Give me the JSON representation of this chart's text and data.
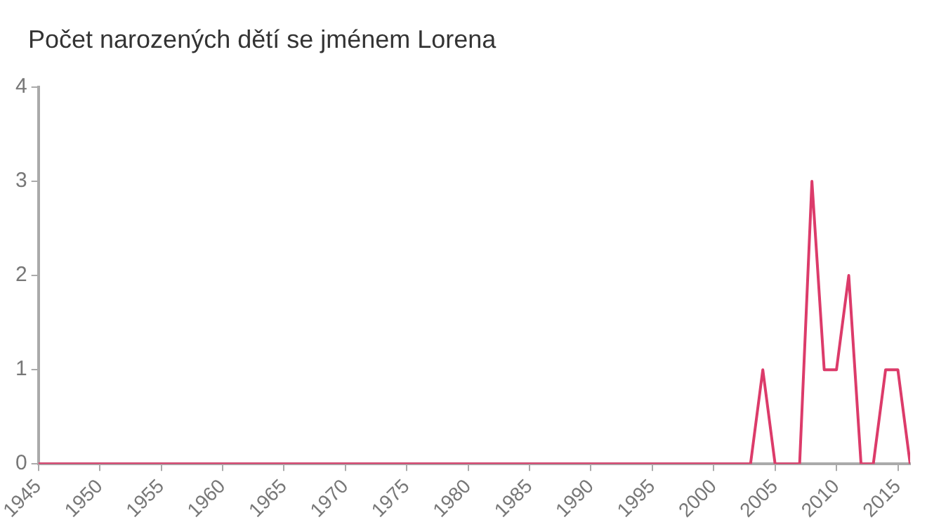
{
  "chart_data": {
    "type": "line",
    "title": "Počet narozených dětí se jménem Lorena",
    "x": [
      1945,
      2003,
      2004,
      2005,
      2007,
      2008,
      2009,
      2010,
      2011,
      2012,
      2013,
      2014,
      2015,
      2016
    ],
    "series": [
      {
        "color": "#dc3b6a",
        "values": [
          0,
          0,
          1,
          0,
          0,
          3,
          1,
          1,
          2,
          0,
          0,
          1,
          1,
          0
        ]
      }
    ],
    "xlim": [
      1945,
      2016
    ],
    "xticks": [
      1945,
      1950,
      1955,
      1960,
      1965,
      1970,
      1975,
      1980,
      1985,
      1990,
      1995,
      2000,
      2005,
      2010,
      2015
    ],
    "ylim": [
      0,
      4
    ],
    "yticks": [
      0,
      1,
      2,
      3,
      4
    ],
    "grid": false,
    "legend": false,
    "marker": "none"
  }
}
